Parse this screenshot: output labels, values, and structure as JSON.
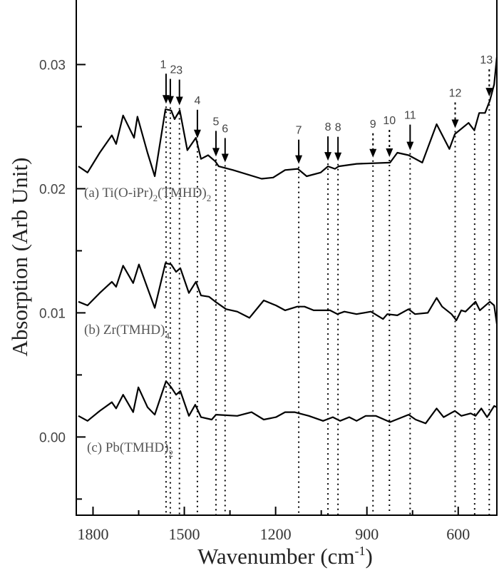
{
  "chart_data": {
    "type": "line",
    "xlabel": "Wavenumber (cm",
    "xlabel_sup": "-1",
    "xlabel_close": ")",
    "ylabel": "Absorption (Arb Unit)",
    "xlim": [
      1855,
      473
    ],
    "ylim": [
      -0.0063,
      0.0352
    ],
    "x_reversed": true,
    "x_ticks": [
      1800,
      1500,
      1200,
      900,
      600
    ],
    "x_tick_labels": [
      "1800",
      "1500",
      "1200",
      "900",
      "600"
    ],
    "x_minor_ticks": [
      1650,
      1350,
      1050,
      750
    ],
    "y_ticks": [
      0.0,
      0.01,
      0.02,
      0.03
    ],
    "y_tick_labels": [
      "0.00",
      "0.01",
      "0.02",
      "0.03"
    ],
    "y_minor_ticks": [
      -0.005,
      0.005,
      0.015,
      0.025
    ],
    "grid": false,
    "line_color": "#000000",
    "series": [
      {
        "label_main": "(a) Ti(O-iPr)",
        "label_sub1": "2",
        "label_mid": "(TMHD)",
        "label_sub2": "2",
        "points": [
          [
            1848,
            0.0218
          ],
          [
            1818,
            0.0213
          ],
          [
            1778,
            0.0229
          ],
          [
            1738,
            0.0243
          ],
          [
            1724,
            0.0236
          ],
          [
            1701,
            0.0259
          ],
          [
            1665,
            0.0241
          ],
          [
            1654,
            0.0258
          ],
          [
            1621,
            0.0229
          ],
          [
            1597,
            0.021
          ],
          [
            1562,
            0.0264
          ],
          [
            1543,
            0.0263
          ],
          [
            1532,
            0.0256
          ],
          [
            1515,
            0.0263
          ],
          [
            1490,
            0.0231
          ],
          [
            1462,
            0.0241
          ],
          [
            1445,
            0.0224
          ],
          [
            1422,
            0.0227
          ],
          [
            1398,
            0.0222
          ],
          [
            1387,
            0.0218
          ],
          [
            1340,
            0.0215
          ],
          [
            1246,
            0.0208
          ],
          [
            1208,
            0.0209
          ],
          [
            1169,
            0.0215
          ],
          [
            1127,
            0.0216
          ],
          [
            1098,
            0.021
          ],
          [
            1052,
            0.0213
          ],
          [
            1028,
            0.0218
          ],
          [
            1005,
            0.0216
          ],
          [
            993,
            0.0218
          ],
          [
            934,
            0.022
          ],
          [
            824,
            0.0221
          ],
          [
            800,
            0.0229
          ],
          [
            763,
            0.0227
          ],
          [
            718,
            0.0221
          ],
          [
            671,
            0.0252
          ],
          [
            629,
            0.0232
          ],
          [
            611,
            0.0244
          ],
          [
            566,
            0.0253
          ],
          [
            547,
            0.0247
          ],
          [
            531,
            0.0261
          ],
          [
            512,
            0.0261
          ],
          [
            496,
            0.0271
          ],
          [
            482,
            0.0284
          ],
          [
            473,
            0.0306
          ]
        ]
      },
      {
        "label_main": "(b) Zr(TMHD)",
        "label_sub1": "4",
        "points": [
          [
            1848,
            0.0109
          ],
          [
            1818,
            0.0106
          ],
          [
            1778,
            0.0116
          ],
          [
            1738,
            0.0125
          ],
          [
            1724,
            0.0121
          ],
          [
            1701,
            0.0138
          ],
          [
            1668,
            0.0124
          ],
          [
            1649,
            0.0139
          ],
          [
            1621,
            0.012
          ],
          [
            1597,
            0.0104
          ],
          [
            1562,
            0.014
          ],
          [
            1543,
            0.0139
          ],
          [
            1527,
            0.0133
          ],
          [
            1513,
            0.0136
          ],
          [
            1485,
            0.0116
          ],
          [
            1462,
            0.0125
          ],
          [
            1445,
            0.0114
          ],
          [
            1419,
            0.0113
          ],
          [
            1398,
            0.0109
          ],
          [
            1363,
            0.0103
          ],
          [
            1326,
            0.0101
          ],
          [
            1286,
            0.0096
          ],
          [
            1239,
            0.011
          ],
          [
            1199,
            0.0106
          ],
          [
            1169,
            0.0102
          ],
          [
            1129,
            0.0105
          ],
          [
            1105,
            0.0105
          ],
          [
            1075,
            0.0102
          ],
          [
            1021,
            0.0102
          ],
          [
            997,
            0.0099
          ],
          [
            974,
            0.0101
          ],
          [
            934,
            0.0099
          ],
          [
            887,
            0.0101
          ],
          [
            847,
            0.0095
          ],
          [
            833,
            0.0099
          ],
          [
            800,
            0.0098
          ],
          [
            763,
            0.0103
          ],
          [
            742,
            0.0099
          ],
          [
            700,
            0.01
          ],
          [
            671,
            0.0112
          ],
          [
            653,
            0.0105
          ],
          [
            622,
            0.0099
          ],
          [
            606,
            0.0094
          ],
          [
            590,
            0.0102
          ],
          [
            576,
            0.0101
          ],
          [
            543,
            0.0109
          ],
          [
            529,
            0.0102
          ],
          [
            496,
            0.0109
          ],
          [
            482,
            0.0106
          ],
          [
            473,
            0.0091
          ]
        ]
      },
      {
        "label_main": "(c) Pb(TMHD)",
        "label_sub1": "2",
        "points": [
          [
            1848,
            0.0017
          ],
          [
            1818,
            0.0013
          ],
          [
            1778,
            0.0021
          ],
          [
            1738,
            0.0028
          ],
          [
            1724,
            0.0023
          ],
          [
            1701,
            0.0034
          ],
          [
            1668,
            0.002
          ],
          [
            1651,
            0.004
          ],
          [
            1621,
            0.0024
          ],
          [
            1597,
            0.0018
          ],
          [
            1560,
            0.0045
          ],
          [
            1543,
            0.004
          ],
          [
            1527,
            0.0034
          ],
          [
            1513,
            0.0037
          ],
          [
            1485,
            0.0017
          ],
          [
            1464,
            0.0026
          ],
          [
            1445,
            0.0016
          ],
          [
            1410,
            0.0014
          ],
          [
            1396,
            0.0018
          ],
          [
            1326,
            0.0017
          ],
          [
            1279,
            0.002
          ],
          [
            1239,
            0.0014
          ],
          [
            1199,
            0.0016
          ],
          [
            1169,
            0.002
          ],
          [
            1138,
            0.002
          ],
          [
            1091,
            0.0017
          ],
          [
            1044,
            0.0013
          ],
          [
            1012,
            0.0016
          ],
          [
            988,
            0.0013
          ],
          [
            958,
            0.0016
          ],
          [
            934,
            0.0013
          ],
          [
            904,
            0.0017
          ],
          [
            871,
            0.0017
          ],
          [
            824,
            0.0012
          ],
          [
            763,
            0.0018
          ],
          [
            740,
            0.0014
          ],
          [
            707,
            0.0011
          ],
          [
            671,
            0.0023
          ],
          [
            648,
            0.0016
          ],
          [
            611,
            0.0021
          ],
          [
            590,
            0.0017
          ],
          [
            559,
            0.0019
          ],
          [
            543,
            0.0017
          ],
          [
            524,
            0.0023
          ],
          [
            505,
            0.0016
          ],
          [
            482,
            0.0025
          ],
          [
            473,
            0.0024
          ]
        ]
      }
    ],
    "peak_markers": [
      {
        "label": "1",
        "x": 1560,
        "style": "solid"
      },
      {
        "label": "2",
        "x": 1546,
        "style": "solid"
      },
      {
        "label": "3",
        "x": 1516,
        "style": "solid"
      },
      {
        "label": "4",
        "x": 1457,
        "style": "solid"
      },
      {
        "label": "5",
        "x": 1396,
        "style": "solid"
      },
      {
        "label": "6",
        "x": 1366,
        "style": "solid"
      },
      {
        "label": "7",
        "x": 1124,
        "style": "solid"
      },
      {
        "label": "8",
        "x": 1028,
        "style": "solid"
      },
      {
        "label": "8",
        "x": 995,
        "style": "solid"
      },
      {
        "label": "9",
        "x": 880,
        "style": "dashed"
      },
      {
        "label": "10",
        "x": 826,
        "style": "dashed"
      },
      {
        "label": "11",
        "x": 758,
        "style": "solid"
      },
      {
        "label": "12",
        "x": 610,
        "style": "dashed"
      },
      {
        "label": "13",
        "x": 498,
        "style": "dashed"
      }
    ],
    "extra_reference_lines": [
      546
    ]
  }
}
